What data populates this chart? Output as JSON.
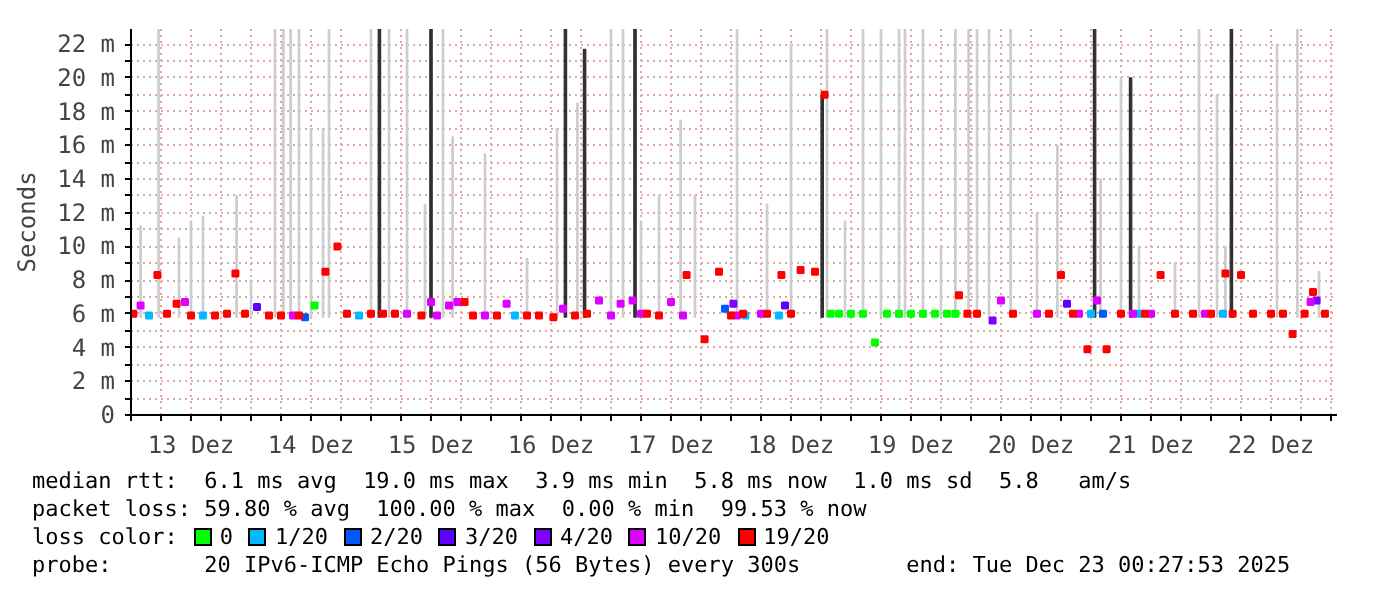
{
  "chart_data": {
    "type": "scatter",
    "ylabel": "Seconds",
    "marker": "square",
    "grid": true,
    "legend": "bottom",
    "legend_title": "loss color:",
    "xlim": [
      13.0,
      23.05
    ],
    "ylim": [
      0,
      22.9
    ],
    "xticks": [
      {
        "value": 13.0,
        "label": null
      },
      {
        "value": 13.25,
        "label": null
      },
      {
        "value": 13.5,
        "label": "13 Dez"
      },
      {
        "value": 13.75,
        "label": null
      },
      {
        "value": 14.0,
        "label": null
      },
      {
        "value": 14.25,
        "label": null
      },
      {
        "value": 14.5,
        "label": "14 Dez"
      },
      {
        "value": 14.75,
        "label": null
      },
      {
        "value": 15.0,
        "label": null
      },
      {
        "value": 15.25,
        "label": null
      },
      {
        "value": 15.5,
        "label": "15 Dez"
      },
      {
        "value": 15.75,
        "label": null
      },
      {
        "value": 16.0,
        "label": null
      },
      {
        "value": 16.25,
        "label": null
      },
      {
        "value": 16.5,
        "label": "16 Dez"
      },
      {
        "value": 16.75,
        "label": null
      },
      {
        "value": 17.0,
        "label": null
      },
      {
        "value": 17.25,
        "label": null
      },
      {
        "value": 17.5,
        "label": "17 Dez"
      },
      {
        "value": 17.75,
        "label": null
      },
      {
        "value": 18.0,
        "label": null
      },
      {
        "value": 18.25,
        "label": null
      },
      {
        "value": 18.5,
        "label": "18 Dez"
      },
      {
        "value": 18.75,
        "label": null
      },
      {
        "value": 19.0,
        "label": null
      },
      {
        "value": 19.25,
        "label": null
      },
      {
        "value": 19.5,
        "label": "19 Dez"
      },
      {
        "value": 19.75,
        "label": null
      },
      {
        "value": 20.0,
        "label": null
      },
      {
        "value": 20.25,
        "label": null
      },
      {
        "value": 20.5,
        "label": "20 Dez"
      },
      {
        "value": 20.75,
        "label": null
      },
      {
        "value": 21.0,
        "label": null
      },
      {
        "value": 21.25,
        "label": null
      },
      {
        "value": 21.5,
        "label": "21 Dez"
      },
      {
        "value": 21.75,
        "label": null
      },
      {
        "value": 22.0,
        "label": null
      },
      {
        "value": 22.25,
        "label": null
      },
      {
        "value": 22.5,
        "label": "22 Dez"
      },
      {
        "value": 22.75,
        "label": null
      },
      {
        "value": 23.0,
        "label": null
      }
    ],
    "yticks": [
      0,
      {
        "value": 1,
        "label": null
      },
      {
        "value": 2,
        "label": "2 m"
      },
      {
        "value": 3,
        "label": null
      },
      {
        "value": 4,
        "label": "4 m"
      },
      {
        "value": 5,
        "label": null
      },
      {
        "value": 6,
        "label": "6 m"
      },
      {
        "value": 7,
        "label": null
      },
      {
        "value": 8,
        "label": "8 m"
      },
      {
        "value": 9,
        "label": null
      },
      {
        "value": 10,
        "label": "10 m"
      },
      {
        "value": 11,
        "label": null
      },
      {
        "value": 12,
        "label": "12 m"
      },
      {
        "value": 13,
        "label": null
      },
      {
        "value": 14,
        "label": "14 m"
      },
      {
        "value": 15,
        "label": null
      },
      {
        "value": 16,
        "label": "16 m"
      },
      {
        "value": 17,
        "label": null
      },
      {
        "value": 18,
        "label": "18 m"
      },
      {
        "value": 19,
        "label": null
      },
      {
        "value": 20,
        "label": "20 m"
      },
      {
        "value": 21,
        "label": null
      },
      {
        "value": 22,
        "label": "22 m"
      }
    ],
    "annotations": [
      "median rtt:  6.1 ms avg  19.0 ms max  3.9 ms min  5.8 ms now  1.0 ms sd  5.8   am/s",
      "packet loss: 59.80 % avg  100.00 % max  0.00 % min  99.53 % now",
      "probe:       20 IPv6-ICMP Echo Pings (56 Bytes) every 300s        end: Tue Dec 23 00:27:53 2025"
    ],
    "series": [
      {
        "type": "bar",
        "color": "#cccccc",
        "x": [
          13.08,
          13.23,
          13.4,
          13.5,
          13.6,
          13.88,
          14.0,
          14.2,
          14.27,
          14.33,
          14.4,
          14.5,
          14.6,
          14.65,
          15.0,
          15.15,
          15.3,
          15.45,
          15.6,
          15.68,
          15.95,
          16.3,
          16.55,
          16.72,
          17.0,
          17.1,
          17.25,
          17.4,
          17.58,
          17.7,
          18.05,
          18.3,
          18.5,
          18.8,
          18.95,
          19.1,
          19.25,
          19.4,
          19.45,
          19.6,
          19.75,
          19.87,
          19.98,
          20.05,
          20.15,
          20.33,
          20.55,
          20.72,
          21.08,
          21.25,
          21.4,
          21.7,
          21.9,
          22.05,
          22.12,
          22.55,
          22.72,
          22.9
        ],
        "base": [
          5.8,
          5.8,
          5.8,
          5.8,
          5.8,
          5.8,
          5.8,
          5.8,
          5.8,
          5.8,
          5.8,
          5.8,
          5.8,
          5.8,
          5.8,
          5.8,
          5.8,
          5.8,
          5.8,
          5.8,
          5.8,
          5.8,
          5.8,
          5.8,
          5.8,
          5.8,
          5.8,
          5.8,
          5.8,
          5.8,
          5.8,
          5.8,
          5.8,
          5.8,
          5.8,
          5.8,
          5.8,
          5.8,
          5.8,
          5.8,
          5.8,
          5.8,
          5.8,
          5.8,
          5.8,
          5.8,
          5.8,
          5.8,
          5.8,
          5.8,
          5.8,
          5.8,
          5.8,
          5.8,
          5.8,
          5.8,
          5.8,
          5.8
        ],
        "values": [
          5.4,
          17.1,
          4.7,
          5.7,
          6.0,
          7.2,
          2.2,
          17.1,
          17.1,
          17.1,
          17.1,
          11.2,
          11.2,
          17.1,
          17.1,
          17.1,
          17.1,
          6.7,
          17.1,
          10.7,
          9.7,
          3.5,
          11.2,
          12.7,
          17.1,
          17.1,
          5.7,
          7.2,
          11.7,
          7.2,
          17.1,
          6.7,
          16.2,
          17.1,
          5.7,
          17.1,
          17.1,
          17.1,
          17.1,
          17.1,
          4.2,
          17.1,
          17.1,
          17.1,
          17.1,
          17.1,
          6.2,
          10.2,
          8.2,
          14.2,
          4.2,
          3.2,
          17.1,
          13.2,
          4.2,
          16.2,
          17.1,
          2.7
        ]
      },
      {
        "type": "bar",
        "color": "#303030",
        "x": [
          15.07,
          15.5,
          16.62,
          16.78,
          17.2,
          18.76,
          21.03,
          21.33,
          22.17
        ],
        "base": [
          5.8,
          5.8,
          5.8,
          5.8,
          5.8,
          5.8,
          5.8,
          5.8,
          5.8
        ],
        "values": [
          17.1,
          17.1,
          17.1,
          15.9,
          17.1,
          13.2,
          17.1,
          14.2,
          17.1
        ]
      },
      {
        "name": "0",
        "color": "#00ff00",
        "x": [
          14.53,
          18.83,
          18.9,
          19.0,
          19.1,
          19.2,
          19.3,
          19.4,
          19.5,
          19.6,
          19.7,
          19.8,
          19.87
        ],
        "values": [
          6.5,
          6.0,
          6.0,
          6.0,
          6.0,
          4.3,
          6.0,
          6.0,
          6.0,
          6.0,
          6.0,
          6.0,
          6.0
        ]
      },
      {
        "name": "1/20",
        "color": "#00b8ff",
        "x": [
          13.15,
          13.6,
          14.9,
          16.2,
          18.12,
          18.4,
          21.0,
          21.4,
          22.1
        ],
        "values": [
          5.9,
          5.9,
          5.9,
          5.9,
          5.9,
          5.9,
          6.0,
          6.0,
          6.0
        ]
      },
      {
        "name": "2/20",
        "color": "#0059ff",
        "x": [
          14.45,
          17.95,
          21.1
        ],
        "values": [
          5.8,
          6.3,
          6.0
        ]
      },
      {
        "name": "3/20",
        "color": "#5e00ff",
        "x": [
          14.05,
          18.45,
          20.8
        ],
        "values": [
          6.4,
          6.5,
          6.6
        ]
      },
      {
        "name": "4/20",
        "color": "#7e00ff",
        "x": [
          18.02,
          20.18,
          22.88
        ],
        "values": [
          6.6,
          5.6,
          6.8
        ]
      },
      {
        "name": "10/20",
        "color": "#dd00ff",
        "x": [
          13.08,
          13.45,
          14.35,
          15.3,
          15.5,
          15.55,
          15.65,
          15.72,
          15.95,
          16.13,
          16.6,
          16.9,
          17.0,
          17.08,
          17.18,
          17.25,
          17.5,
          17.6,
          18.05,
          18.25,
          20.25,
          20.55,
          20.9,
          21.05,
          21.35,
          21.5,
          21.95,
          22.83
        ],
        "values": [
          6.5,
          6.7,
          5.9,
          6.0,
          6.7,
          5.9,
          6.5,
          6.7,
          5.9,
          6.6,
          6.3,
          6.8,
          5.9,
          6.6,
          6.8,
          6.0,
          6.7,
          5.9,
          5.9,
          6.0,
          6.8,
          6.0,
          6.0,
          6.8,
          6.0,
          6.0,
          6.0,
          6.7
        ]
      },
      {
        "name": "19/20",
        "color": "#ff0000",
        "x": [
          13.02,
          13.22,
          13.3,
          13.38,
          13.5,
          13.7,
          13.8,
          13.87,
          13.95,
          14.15,
          14.25,
          14.4,
          14.62,
          14.72,
          14.8,
          15.0,
          15.1,
          15.2,
          15.42,
          15.78,
          15.85,
          16.05,
          16.3,
          16.4,
          16.52,
          16.7,
          16.8,
          17.3,
          17.4,
          17.63,
          17.78,
          17.9,
          18.0,
          18.1,
          18.3,
          18.42,
          18.5,
          18.58,
          18.7,
          18.78,
          19.9,
          19.97,
          20.05,
          20.35,
          20.65,
          20.75,
          20.85,
          20.97,
          21.13,
          21.25,
          21.45,
          21.58,
          21.7,
          21.85,
          22.0,
          22.12,
          22.18,
          22.25,
          22.35,
          22.5,
          22.6,
          22.68,
          22.78,
          22.85,
          22.95
        ],
        "values": [
          6.0,
          8.3,
          6.0,
          6.6,
          5.9,
          5.9,
          6.0,
          8.4,
          6.0,
          5.9,
          5.9,
          5.9,
          8.5,
          10.0,
          6.0,
          6.0,
          6.0,
          6.0,
          5.9,
          6.7,
          5.9,
          5.9,
          5.9,
          5.9,
          5.8,
          5.9,
          6.0,
          6.0,
          5.9,
          8.3,
          4.5,
          8.5,
          5.9,
          6.0,
          6.0,
          8.3,
          6.0,
          8.6,
          8.5,
          19.0,
          7.1,
          6.0,
          6.0,
          6.0,
          6.0,
          8.3,
          6.0,
          3.9,
          3.9,
          6.0,
          6.0,
          8.3,
          6.0,
          6.0,
          6.0,
          8.4,
          6.0,
          8.3,
          6.0,
          6.0,
          6.0,
          4.8,
          6.0,
          7.3,
          6.0
        ]
      }
    ]
  }
}
